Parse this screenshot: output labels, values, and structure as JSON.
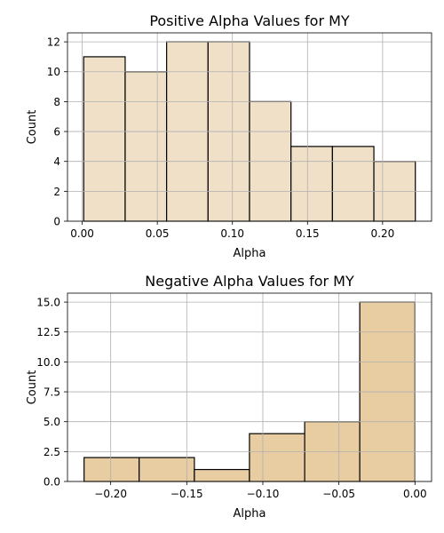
{
  "chart_data": [
    {
      "type": "bar",
      "title": "Positive Alpha Values for MY",
      "xlabel": "Alpha",
      "ylabel": "Count",
      "bin_edges": [
        0.001,
        0.0286,
        0.0562,
        0.0838,
        0.1114,
        0.139,
        0.1666,
        0.1942,
        0.2218
      ],
      "values": [
        11,
        10,
        12,
        12,
        8,
        5,
        5,
        4
      ],
      "xlim": [
        -0.0098,
        0.2326
      ],
      "ylim": [
        0,
        12.6
      ],
      "xticks": [
        0.0,
        0.05,
        0.1,
        0.15,
        0.2
      ],
      "xtick_labels": [
        "0.00",
        "0.05",
        "0.10",
        "0.15",
        "0.20"
      ],
      "yticks": [
        0,
        2,
        4,
        6,
        8,
        10,
        12
      ],
      "ytick_labels": [
        "0",
        "2",
        "4",
        "6",
        "8",
        "10",
        "12"
      ],
      "grid": true,
      "color": "#F0E0C8"
    },
    {
      "type": "bar",
      "title": "Negative Alpha Values for MY",
      "xlabel": "Alpha",
      "ylabel": "Count",
      "bin_edges": [
        -0.2175,
        -0.1813,
        -0.145,
        -0.1088,
        -0.0725,
        -0.0363,
        0.0
      ],
      "values": [
        2,
        2,
        1,
        4,
        5,
        15
      ],
      "xlim": [
        -0.2284,
        0.0109
      ],
      "ylim": [
        0,
        15.75
      ],
      "xticks": [
        -0.2,
        -0.15,
        -0.1,
        -0.05,
        0.0
      ],
      "xtick_labels": [
        "−0.20",
        "−0.15",
        "−0.10",
        "−0.05",
        "0.00"
      ],
      "yticks": [
        0,
        2.5,
        5,
        7.5,
        10,
        12.5,
        15
      ],
      "ytick_labels": [
        "0.0",
        "2.5",
        "5.0",
        "7.5",
        "10.0",
        "12.5",
        "15.0"
      ],
      "grid": true,
      "color": "#E8CCA2"
    }
  ]
}
